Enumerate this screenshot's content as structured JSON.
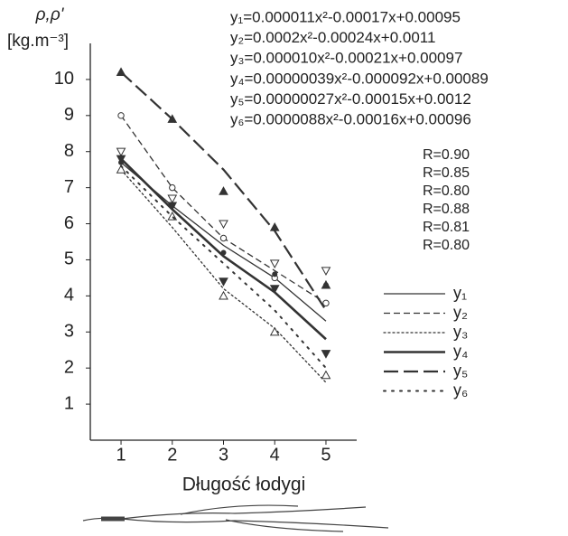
{
  "chart_data": {
    "type": "line",
    "y_label": [
      "ρ,ρ'",
      "[kg.m⁻³]"
    ],
    "x_label": "Długość łodygi",
    "xlim": [
      0.4,
      5.6
    ],
    "ylim": [
      0,
      11
    ],
    "xticks": [
      1,
      2,
      3,
      4,
      5
    ],
    "yticks": [
      1,
      2,
      3,
      4,
      5,
      6,
      7,
      8,
      9,
      10
    ],
    "x": [
      1,
      2,
      3,
      4,
      5
    ],
    "equations": [
      "y₁=0.000011x²-0.00017x+0.00095",
      "y₂=0.0002x²-0.00024x+0.0011",
      "y₃=0.000010x²-0.00021x+0.00097",
      "y₄=0.00000039x²-0.000092x+0.00089",
      "y₅=0.00000027x²-0.00015x+0.0012",
      "y₆=0.0000088x²-0.00016x+0.00096"
    ],
    "r_values": [
      "R=0.90",
      "R=0.85",
      "R=0.80",
      "R=0.88",
      "R=0.81",
      "R=0.80"
    ],
    "series": [
      {
        "name": "y₁",
        "color": "#333333",
        "dash": "solid",
        "width": 1.3,
        "marker": "triangle-down-open",
        "values": [
          7.7,
          6.5,
          5.4,
          4.5,
          3.3
        ],
        "marker_values": [
          8.0,
          6.7,
          6.0,
          4.9,
          4.7
        ]
      },
      {
        "name": "y₂",
        "color": "#333333",
        "dash": "short-dash",
        "width": 1.3,
        "marker": "circle-open",
        "values": [
          9.0,
          7.0,
          5.6,
          4.7,
          3.8
        ],
        "marker_values": [
          9.0,
          7.0,
          5.6,
          4.5,
          3.8
        ]
      },
      {
        "name": "y₃",
        "color": "#333333",
        "dash": "dot",
        "width": 1.3,
        "marker": "triangle-up-open",
        "values": [
          7.5,
          5.9,
          4.2,
          3.1,
          1.6
        ],
        "marker_values": [
          7.5,
          6.2,
          4.0,
          3.0,
          1.8
        ]
      },
      {
        "name": "y₄",
        "color": "#333333",
        "dash": "solid",
        "width": 2.6,
        "marker": "triangle-down-filled",
        "values": [
          7.8,
          6.4,
          5.1,
          4.1,
          2.8
        ],
        "marker_values": [
          7.8,
          6.5,
          4.4,
          4.2,
          2.4
        ]
      },
      {
        "name": "y₅",
        "color": "#333333",
        "dash": "long-dash",
        "width": 2.2,
        "marker": "triangle-up-filled",
        "values": [
          10.2,
          8.9,
          7.5,
          5.8,
          3.6
        ],
        "marker_values": [
          10.2,
          8.9,
          6.9,
          5.9,
          4.3
        ]
      },
      {
        "name": "y₆",
        "color": "#333333",
        "dash": "sparse-dot",
        "width": 2,
        "marker": "circle-filled",
        "values": [
          7.6,
          6.2,
          4.9,
          3.6,
          2.0
        ],
        "marker_values": [
          7.7,
          6.5,
          5.2,
          4.6,
          4.3
        ]
      }
    ]
  }
}
